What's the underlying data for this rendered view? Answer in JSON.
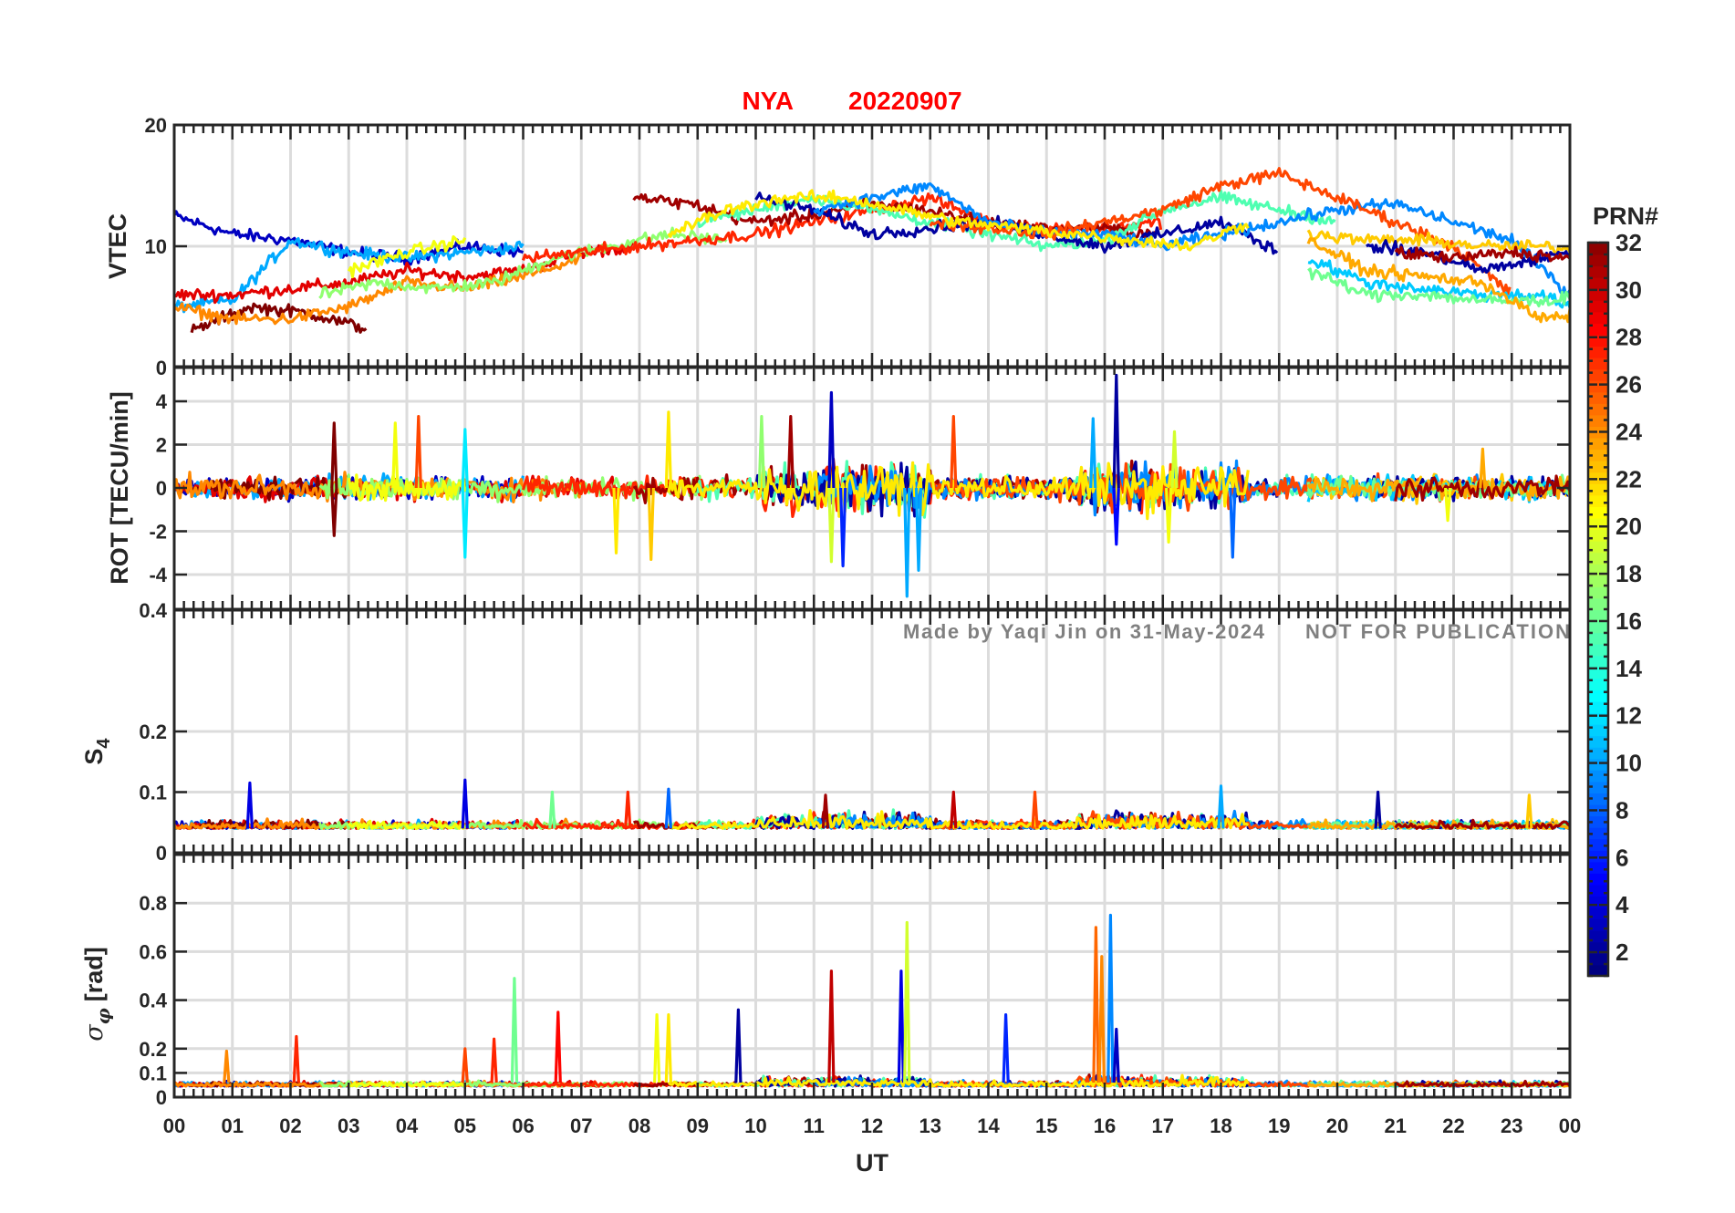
{
  "chart_data": {
    "type": "line",
    "title_station": "NYA",
    "title_date": "20220907",
    "xlabel": "UT",
    "xlim": [
      0,
      24
    ],
    "xticks": [
      "00",
      "01",
      "02",
      "03",
      "04",
      "05",
      "06",
      "07",
      "08",
      "09",
      "10",
      "11",
      "12",
      "13",
      "14",
      "15",
      "16",
      "17",
      "18",
      "19",
      "20",
      "21",
      "22",
      "23",
      "00"
    ],
    "watermark_author": "Made by Yaqi Jin on 31-May-2024",
    "watermark_notice": "NOT FOR PUBLICATION",
    "colorbar": {
      "label": "PRN#",
      "range": [
        1,
        32
      ],
      "ticks": [
        "2",
        "4",
        "6",
        "8",
        "10",
        "12",
        "14",
        "16",
        "18",
        "20",
        "22",
        "24",
        "26",
        "28",
        "30",
        "32"
      ],
      "colormap": "jet"
    },
    "panels": [
      {
        "id": "vtec",
        "ylabel": "VTEC",
        "ylim": [
          0,
          20
        ],
        "yticks": [
          0,
          10,
          20
        ],
        "ytick_labels": [
          "0",
          "10",
          "20"
        ]
      },
      {
        "id": "rot",
        "ylabel": "ROT [TECU/min]",
        "ylim": [
          -5.6,
          5.6
        ],
        "yticks": [
          -4,
          -2,
          0,
          2,
          4
        ],
        "ytick_labels": [
          "-4",
          "-2",
          "0",
          "2",
          "4"
        ]
      },
      {
        "id": "s4",
        "ylabel": "S",
        "ylabel_sub": "4",
        "ylim": [
          0,
          0.4
        ],
        "yticks": [
          0,
          0.1,
          0.2,
          0.4
        ],
        "ytick_labels": [
          "0",
          "0.1",
          "0.2",
          "0.4"
        ]
      },
      {
        "id": "sigma",
        "ylabel": "σ",
        "ylabel_sub": "φ",
        "ylabel_unit": "[rad]",
        "ylim": [
          0,
          1
        ],
        "yticks": [
          0,
          0.1,
          0.2,
          0.4,
          0.6,
          0.8
        ],
        "ytick_labels": [
          "0",
          "0.1",
          "0.2",
          "0.4",
          "0.6",
          "0.8"
        ]
      }
    ],
    "vtec_arcs": [
      {
        "prn": 3,
        "t0": 0,
        "values": [
          12.5,
          11,
          10.5,
          9.5,
          9,
          10,
          9.5
        ]
      },
      {
        "prn": 10,
        "t0": 0,
        "values": [
          5,
          5.5,
          10.5,
          9.5,
          9,
          9.5,
          10
        ]
      },
      {
        "prn": 29,
        "t0": 0,
        "values": [
          6,
          6,
          6.5,
          7,
          8,
          7.5,
          8,
          9.5,
          10
        ]
      },
      {
        "prn": 32,
        "t0": 0.3,
        "values": [
          3,
          5,
          4.5,
          3.2
        ]
      },
      {
        "prn": 24,
        "t0": 0,
        "values": [
          5,
          4,
          4,
          5,
          7,
          6.5,
          7.5,
          9
        ]
      },
      {
        "prn": 17,
        "t0": 2.5,
        "values": [
          6,
          7,
          6.5,
          7,
          9,
          10,
          11,
          10.5
        ]
      },
      {
        "prn": 20,
        "t0": 3,
        "values": [
          8,
          9.5,
          10.5
        ]
      },
      {
        "prn": 27,
        "t0": 6,
        "values": [
          9,
          9.5,
          10,
          10.5,
          11,
          12,
          13,
          14,
          12,
          11.5,
          11.5,
          12
        ]
      },
      {
        "prn": 31,
        "t0": 7.9,
        "values": [
          14,
          13.5,
          12,
          12.5,
          13.5,
          13,
          12,
          11.5,
          11.5,
          11
        ]
      },
      {
        "prn": 15,
        "t0": 9,
        "values": [
          12,
          13,
          14,
          13,
          12,
          11,
          10,
          10.5,
          13,
          14,
          13,
          12
        ]
      },
      {
        "prn": 2,
        "t0": 10,
        "values": [
          14,
          13,
          11,
          11.5,
          12,
          11,
          10,
          11,
          12,
          9.5
        ]
      },
      {
        "prn": 9,
        "t0": 11,
        "values": [
          13,
          14,
          15,
          12,
          11,
          11,
          10,
          11,
          12,
          13,
          13.5,
          12,
          10.5,
          6,
          5
        ]
      },
      {
        "prn": 26,
        "t0": 13,
        "values": [
          12,
          11.5,
          11,
          12,
          13,
          15,
          16,
          14,
          12,
          10,
          6
        ]
      },
      {
        "prn": 21,
        "t0": 8.5,
        "values": [
          11,
          13,
          14,
          14,
          13,
          12,
          11.5,
          11,
          10.5,
          10,
          12
        ]
      },
      {
        "prn": 22,
        "t0": 19.5,
        "values": [
          11,
          10.5,
          10.5,
          10,
          10,
          9.5,
          8.5
        ]
      },
      {
        "prn": 2,
        "t0": 20.5,
        "values": [
          10,
          9.5,
          8,
          9,
          10,
          9.5
        ]
      },
      {
        "prn": 11,
        "t0": 19.5,
        "values": [
          9,
          7,
          6.5,
          6,
          6,
          4,
          3.5
        ]
      },
      {
        "prn": 16,
        "t0": 19.5,
        "values": [
          8,
          6,
          6,
          5.5,
          5.5,
          6
        ]
      },
      {
        "prn": 23,
        "t0": 19.5,
        "values": [
          10.5,
          8,
          7.5,
          7,
          4,
          4.5
        ]
      },
      {
        "prn": 31,
        "t0": 21,
        "values": [
          9.5,
          9,
          9.5,
          9,
          8,
          5
        ]
      }
    ],
    "rot_spikes": [
      [
        2.75,
        3,
        32
      ],
      [
        2.75,
        -2.2,
        32
      ],
      [
        3.8,
        3,
        20
      ],
      [
        4.2,
        3.3,
        26
      ],
      [
        5,
        2.7,
        12
      ],
      [
        5,
        -3.2,
        12
      ],
      [
        8.5,
        3.5,
        21
      ],
      [
        8.2,
        -3.3,
        22
      ],
      [
        7.6,
        -3,
        21
      ],
      [
        10.1,
        3.3,
        17
      ],
      [
        10.6,
        3.3,
        31
      ],
      [
        11.3,
        4.4,
        3
      ],
      [
        11.3,
        -3.4,
        19
      ],
      [
        11.5,
        -3.6,
        6
      ],
      [
        12.6,
        -5,
        10
      ],
      [
        12.8,
        -3.8,
        10
      ],
      [
        13.4,
        3.3,
        26
      ],
      [
        16.2,
        5.2,
        2
      ],
      [
        16.2,
        -2.6,
        5
      ],
      [
        15.8,
        3.2,
        10
      ],
      [
        17.1,
        -2.5,
        20
      ],
      [
        17.2,
        2.6,
        19
      ],
      [
        18.2,
        -3.2,
        8
      ],
      [
        22.5,
        1.8,
        23
      ],
      [
        21.9,
        -1.5,
        20
      ]
    ],
    "s4_baseline": 0.04,
    "s4_spikes": [
      [
        1.3,
        0.115,
        4
      ],
      [
        5,
        0.12,
        4
      ],
      [
        8.5,
        0.105,
        8
      ],
      [
        7.8,
        0.1,
        27
      ],
      [
        11.2,
        0.095,
        31
      ],
      [
        13.4,
        0.1,
        30
      ],
      [
        18,
        0.11,
        10
      ],
      [
        20.7,
        0.1,
        2
      ],
      [
        23.3,
        0.095,
        22
      ],
      [
        6.5,
        0.1,
        16
      ],
      [
        14.8,
        0.1,
        26
      ]
    ],
    "sigma_baseline": 0.06,
    "sigma_spikes": [
      [
        0.9,
        0.19,
        24
      ],
      [
        2.1,
        0.25,
        27
      ],
      [
        5,
        0.2,
        26
      ],
      [
        5.5,
        0.24,
        27
      ],
      [
        5.85,
        0.49,
        16
      ],
      [
        6.6,
        0.35,
        28
      ],
      [
        8.3,
        0.34,
        20
      ],
      [
        8.5,
        0.34,
        21
      ],
      [
        9.7,
        0.36,
        2
      ],
      [
        11.3,
        0.52,
        30
      ],
      [
        12.5,
        0.52,
        4
      ],
      [
        12.6,
        0.72,
        19
      ],
      [
        14.3,
        0.34,
        6
      ],
      [
        15.85,
        0.7,
        25
      ],
      [
        15.95,
        0.58,
        24
      ],
      [
        16.1,
        0.75,
        9
      ],
      [
        16.2,
        0.28,
        3
      ]
    ]
  }
}
